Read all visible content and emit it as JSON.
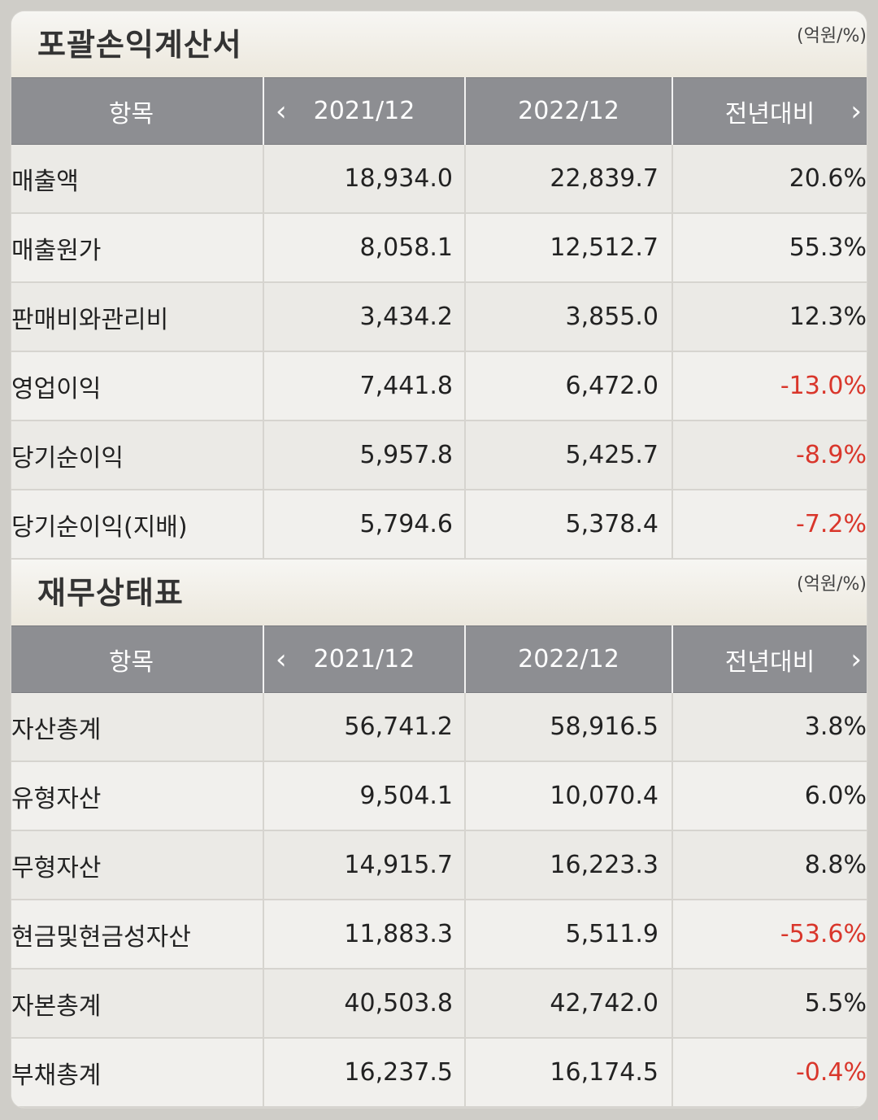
{
  "income": {
    "title": "포괄손익계산서",
    "unit": "(억원/%)",
    "headers": {
      "item": "항목",
      "y1": "2021/12",
      "y2": "2022/12",
      "yoy": "전년대비"
    },
    "rows": [
      {
        "label": "매출액",
        "v1": "18,934.0",
        "v2": "22,839.7",
        "yoy": "20.6%",
        "negative": false
      },
      {
        "label": "매출원가",
        "v1": "8,058.1",
        "v2": "12,512.7",
        "yoy": "55.3%",
        "negative": false
      },
      {
        "label": "판매비와관리비",
        "v1": "3,434.2",
        "v2": "3,855.0",
        "yoy": "12.3%",
        "negative": false
      },
      {
        "label": "영업이익",
        "v1": "7,441.8",
        "v2": "6,472.0",
        "yoy": "-13.0%",
        "negative": true
      },
      {
        "label": "당기순이익",
        "v1": "5,957.8",
        "v2": "5,425.7",
        "yoy": "-8.9%",
        "negative": true
      },
      {
        "label": "당기순이익(지배)",
        "v1": "5,794.6",
        "v2": "5,378.4",
        "yoy": "-7.2%",
        "negative": true
      }
    ]
  },
  "balance": {
    "title": "재무상태표",
    "unit": "(억원/%)",
    "headers": {
      "item": "항목",
      "y1": "2021/12",
      "y2": "2022/12",
      "yoy": "전년대비"
    },
    "rows": [
      {
        "label": "자산총계",
        "v1": "56,741.2",
        "v2": "58,916.5",
        "yoy": "3.8%",
        "negative": false
      },
      {
        "label": "유형자산",
        "v1": "9,504.1",
        "v2": "10,070.4",
        "yoy": "6.0%",
        "negative": false
      },
      {
        "label": "무형자산",
        "v1": "14,915.7",
        "v2": "16,223.3",
        "yoy": "8.8%",
        "negative": false
      },
      {
        "label": "현금및현금성자산",
        "v1": "11,883.3",
        "v2": "5,511.9",
        "yoy": "-53.6%",
        "negative": true
      },
      {
        "label": "자본총계",
        "v1": "40,503.8",
        "v2": "42,742.0",
        "yoy": "5.5%",
        "negative": false
      },
      {
        "label": "부채총계",
        "v1": "16,237.5",
        "v2": "16,174.5",
        "yoy": "-0.4%",
        "negative": true
      }
    ]
  },
  "icons": {
    "prev": "chevron-left-icon",
    "next": "chevron-right-icon"
  }
}
